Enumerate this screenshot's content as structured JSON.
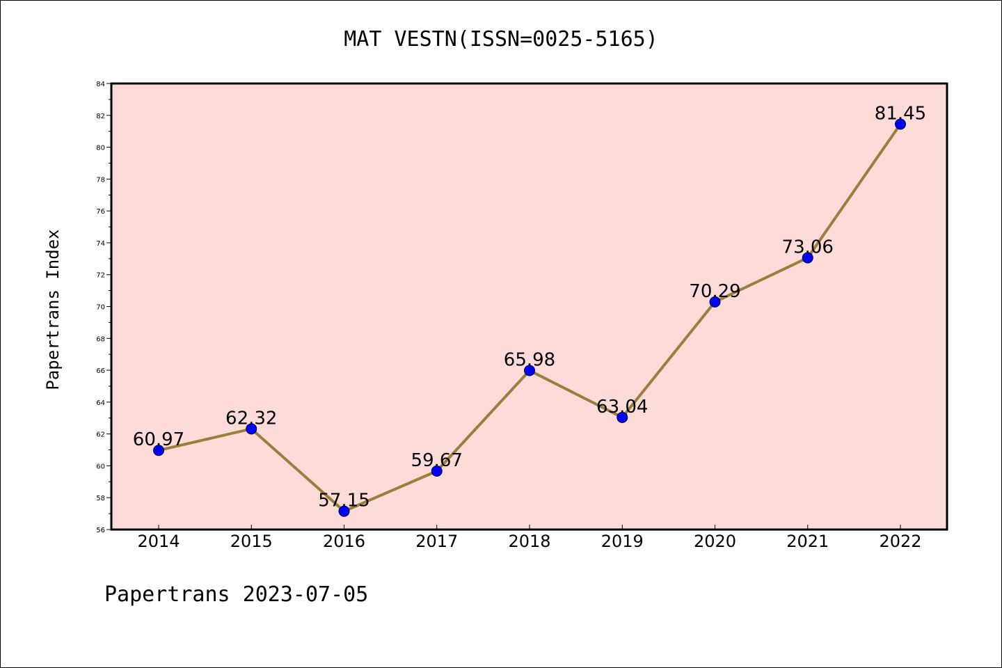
{
  "page": {
    "title": "MAT VESTN(ISSN=0025-5165)",
    "footer": "Papertrans 2023-07-05"
  },
  "chart_data": {
    "type": "line",
    "title": "MAT VESTN(ISSN=0025-5165)",
    "xlabel": "",
    "ylabel": "Papertrans Index",
    "categories": [
      "2014",
      "2015",
      "2016",
      "2017",
      "2018",
      "2019",
      "2020",
      "2021",
      "2022"
    ],
    "series": [
      {
        "values": [
          60.97,
          62.32,
          57.15,
          59.67,
          65.98,
          63.04,
          70.29,
          73.06,
          81.45
        ]
      }
    ],
    "data_labels": [
      "60.97",
      "62.32",
      "57.15",
      "59.67",
      "65.98",
      "63.04",
      "70.29",
      "73.06",
      "81.45"
    ],
    "ylim": [
      56,
      84
    ],
    "yticks": [
      56,
      58,
      60,
      62,
      64,
      66,
      68,
      70,
      72,
      74,
      76,
      78,
      80,
      82,
      84
    ],
    "grid": false,
    "colors": {
      "plot_background": "#fddbd9",
      "line": "#9b7e3c",
      "marker": "#0000ff",
      "frame": "#000000"
    }
  }
}
